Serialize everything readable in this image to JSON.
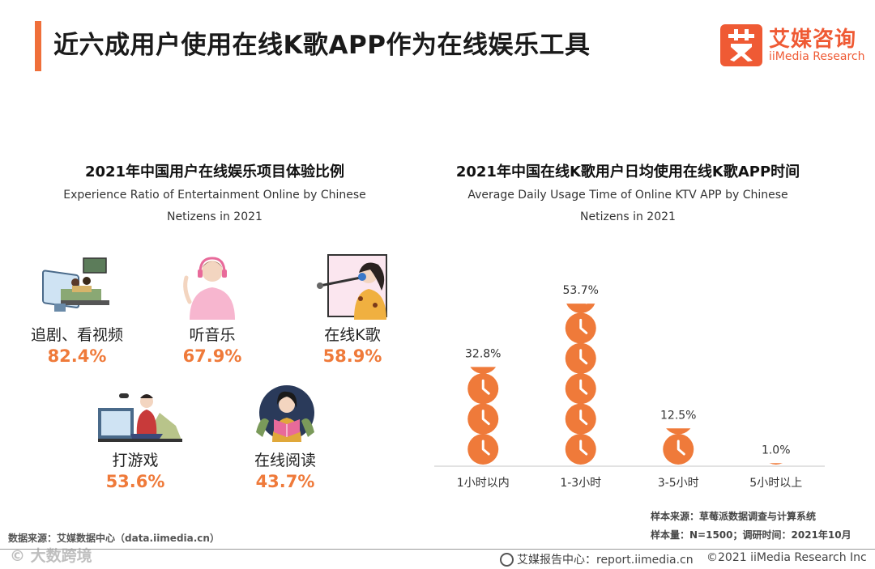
{
  "page": {
    "title": "近六成用户使用在线K歌APP作为在线娱乐工具"
  },
  "logo": {
    "cn": "艾媒咨询",
    "en": "iiMedia Research"
  },
  "left_panel": {
    "title": "2021年中国用户在线娱乐项目体验比例",
    "subtitle_line1": "Experience Ratio of Entertainment Online by Chinese",
    "subtitle_line2": "Netizens in 2021",
    "items": [
      {
        "label": "追剧、看视频",
        "value": "82.4%",
        "icon": "tv-watching-icon"
      },
      {
        "label": "听音乐",
        "value": "67.9%",
        "icon": "headphones-person-icon"
      },
      {
        "label": "在线K歌",
        "value": "58.9%",
        "icon": "microphone-singer-icon"
      },
      {
        "label": "打游戏",
        "value": "53.6%",
        "icon": "gamer-icon"
      },
      {
        "label": "在线阅读",
        "value": "43.7%",
        "icon": "reading-icon"
      }
    ]
  },
  "right_panel": {
    "title": "2021年中国在线K歌用户日均使用在线K歌APP时间",
    "subtitle_line1": "Average Daily Usage Time of Online KTV APP by Chinese",
    "subtitle_line2": "Netizens in 2021"
  },
  "chart_data": {
    "type": "bar",
    "title": "2021年中国在线K歌用户日均使用在线K歌APP时间",
    "categories": [
      "1小时以内",
      "1-3小时",
      "3-5小时",
      "5小时以上"
    ],
    "values": [
      32.8,
      53.7,
      12.5,
      1.0
    ],
    "value_labels": [
      "32.8%",
      "53.7%",
      "12.5%",
      "1.0%"
    ],
    "unit": "%",
    "ylim": [
      0,
      60
    ],
    "mark_icon": "clock-icon",
    "color": "#ef7a3a",
    "grid": false
  },
  "notes": {
    "sample_source": "样本来源：草莓派数据调查与计算系统",
    "sample_size": "样本量：N=1500；调研时间：2021年10月"
  },
  "source": "数据来源：艾媒数据中心（data.iimedia.cn）",
  "footer": {
    "report_center": "艾媒报告中心：report.iimedia.cn",
    "copyright": "©2021  iiMedia Research  Inc"
  },
  "watermark": "© 大数跨境"
}
